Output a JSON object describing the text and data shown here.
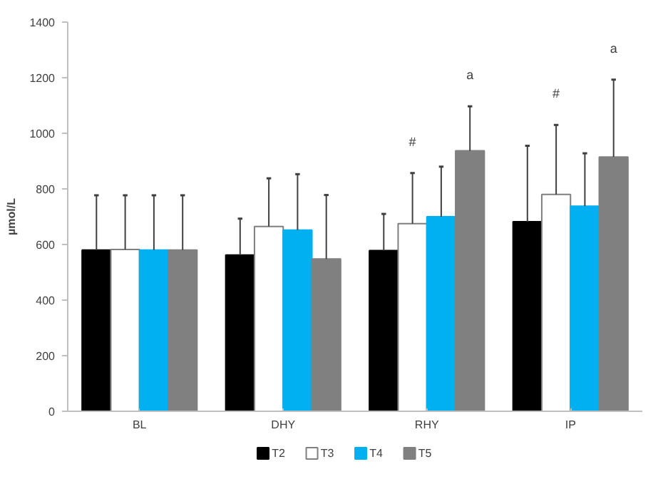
{
  "chart_data": {
    "type": "bar",
    "ylabel": "µmol/L",
    "categories": [
      "BL",
      "DHY",
      "RHY",
      "IP"
    ],
    "ylim": [
      0,
      1400
    ],
    "yticks": [
      0,
      200,
      400,
      600,
      800,
      1000,
      1200,
      1400
    ],
    "grid": false,
    "legend": "bottom",
    "series": [
      {
        "name": "T2",
        "color": "#000000",
        "values": [
          580,
          562,
          578,
          682
        ],
        "errors": [
          [
            580,
            777
          ],
          [
            562,
            693
          ],
          [
            578,
            710
          ],
          [
            682,
            955
          ]
        ]
      },
      {
        "name": "T3",
        "color": "#ffffff",
        "values": [
          582,
          665,
          675,
          780
        ],
        "errors": [
          [
            582,
            777
          ],
          [
            665,
            838
          ],
          [
            675,
            857
          ],
          [
            780,
            1030
          ]
        ]
      },
      {
        "name": "T4",
        "color": "#00b0f0",
        "values": [
          580,
          652,
          700,
          738
        ],
        "errors": [
          [
            580,
            777
          ],
          [
            652,
            853
          ],
          [
            700,
            880
          ],
          [
            738,
            928
          ]
        ]
      },
      {
        "name": "T5",
        "color": "#808080",
        "values": [
          580,
          548,
          937,
          915
        ],
        "errors": [
          [
            580,
            777
          ],
          [
            548,
            778
          ],
          [
            937,
            1097
          ],
          [
            915,
            1193
          ]
        ]
      }
    ],
    "annotations": [
      "#",
      "a",
      "#",
      "a"
    ]
  }
}
